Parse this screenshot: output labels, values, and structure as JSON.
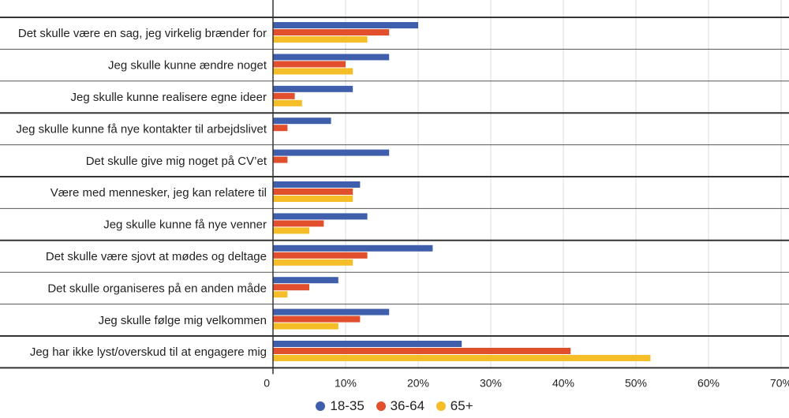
{
  "chart_data": {
    "type": "bar",
    "orientation": "horizontal",
    "categories": [
      "Det skulle være en sag, jeg virkelig brænder for",
      "Jeg skulle kunne ændre noget",
      "Jeg skulle kunne realisere egne ideer",
      "Jeg skulle kunne få nye kontakter til arbejdslivet",
      "Det skulle give mig noget på CV’et",
      "Være med mennesker, jeg kan relatere til",
      "Jeg skulle kunne få nye venner",
      "Det skulle være sjovt at mødes og deltage",
      "Det skulle organiseres på en anden måde",
      "Jeg skulle følge mig velkommen",
      "Jeg har ikke lyst/overskud til at engagere mig"
    ],
    "series": [
      {
        "name": "18-35",
        "color": "#3f5fad",
        "values": [
          20,
          16,
          11,
          8,
          16,
          12,
          13,
          22,
          9,
          16,
          26
        ]
      },
      {
        "name": "36-64",
        "color": "#e14f2d",
        "values": [
          16,
          10,
          3,
          2,
          2,
          11,
          7,
          13,
          5,
          12,
          41
        ]
      },
      {
        "name": "65+",
        "color": "#f5bd27",
        "values": [
          13,
          11,
          4,
          0,
          0,
          11,
          5,
          11,
          2,
          9,
          52
        ]
      }
    ],
    "group_separators_after": [
      2,
      4,
      6,
      9
    ],
    "xlim": [
      0,
      70
    ],
    "xticks": [
      0,
      10,
      20,
      30,
      40,
      50,
      60,
      70
    ],
    "xtick_labels": [
      "0",
      "10%",
      "20%",
      "30%",
      "40%",
      "50%",
      "60%",
      "70%"
    ],
    "grid": true,
    "legend_position": "bottom"
  }
}
